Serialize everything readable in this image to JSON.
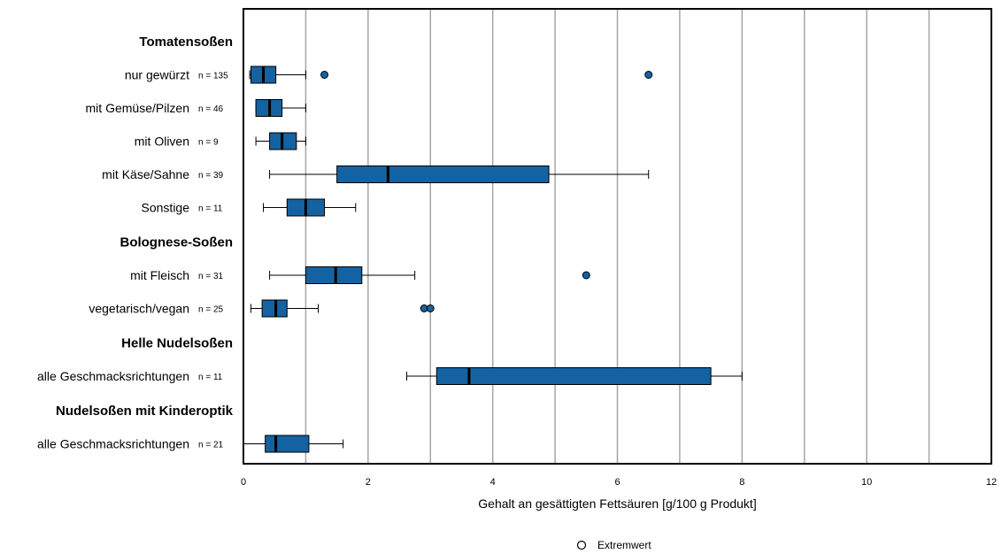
{
  "chart_data": {
    "type": "boxplot",
    "orientation": "horizontal",
    "xlabel": "Gehalt an gesättigten Fettsäuren [g/100 g Produkt]",
    "xlim": [
      0,
      12
    ],
    "x_ticks": [
      0,
      2,
      4,
      6,
      8,
      10,
      12
    ],
    "gridlines": [
      1,
      2,
      3,
      4,
      5,
      6,
      7,
      8,
      9,
      10,
      11
    ],
    "box_color": "#1462a1",
    "groups": [
      {
        "title": "Tomatensoßen",
        "rows": [
          {
            "label": "nur gewürzt",
            "n": "n = 135",
            "whisker_low": 0.1,
            "q1": 0.12,
            "median": 0.32,
            "q3": 0.52,
            "whisker_high": 1.0,
            "outliers": [
              1.3,
              6.5
            ]
          },
          {
            "label": "mit Gemüse/Pilzen",
            "n": "n = 46",
            "whisker_low": 0.2,
            "q1": 0.2,
            "median": 0.42,
            "q3": 0.62,
            "whisker_high": 1.0,
            "outliers": []
          },
          {
            "label": "mit Oliven",
            "n": "n = 9",
            "whisker_low": 0.2,
            "q1": 0.42,
            "median": 0.62,
            "q3": 0.85,
            "whisker_high": 1.0,
            "outliers": []
          },
          {
            "label": "mit Käse/Sahne",
            "n": "n = 39",
            "whisker_low": 0.42,
            "q1": 1.5,
            "median": 2.32,
            "q3": 4.9,
            "whisker_high": 6.5,
            "outliers": []
          },
          {
            "label": "Sonstige",
            "n": "n = 11",
            "whisker_low": 0.32,
            "q1": 0.7,
            "median": 1.0,
            "q3": 1.3,
            "whisker_high": 1.8,
            "outliers": []
          }
        ]
      },
      {
        "title": "Bolognese-Soßen",
        "rows": [
          {
            "label": "mit Fleisch",
            "n": "n = 31",
            "whisker_low": 0.42,
            "q1": 1.0,
            "median": 1.48,
            "q3": 1.9,
            "whisker_high": 2.75,
            "outliers": [
              5.5
            ]
          },
          {
            "label": "vegetarisch/vegan",
            "n": "n = 25",
            "whisker_low": 0.12,
            "q1": 0.3,
            "median": 0.52,
            "q3": 0.7,
            "whisker_high": 1.2,
            "outliers": [
              2.9,
              3.0
            ]
          }
        ]
      },
      {
        "title": "Helle Nudelsoßen",
        "rows": [
          {
            "label": "alle Geschmacksrichtungen",
            "n": "n = 11",
            "whisker_low": 2.62,
            "q1": 3.1,
            "median": 3.62,
            "q3": 7.5,
            "whisker_high": 8.0,
            "outliers": []
          }
        ]
      },
      {
        "title": "Nudelsoßen mit Kinderoptik",
        "rows": [
          {
            "label": "alle Geschmacksrichtungen",
            "n": "n = 21",
            "whisker_low": 0.0,
            "q1": 0.35,
            "median": 0.52,
            "q3": 1.05,
            "whisker_high": 1.6,
            "outliers": []
          }
        ]
      }
    ],
    "legend": {
      "marker": "circle",
      "label": "Extremwert",
      "position": "bottom-center"
    }
  }
}
